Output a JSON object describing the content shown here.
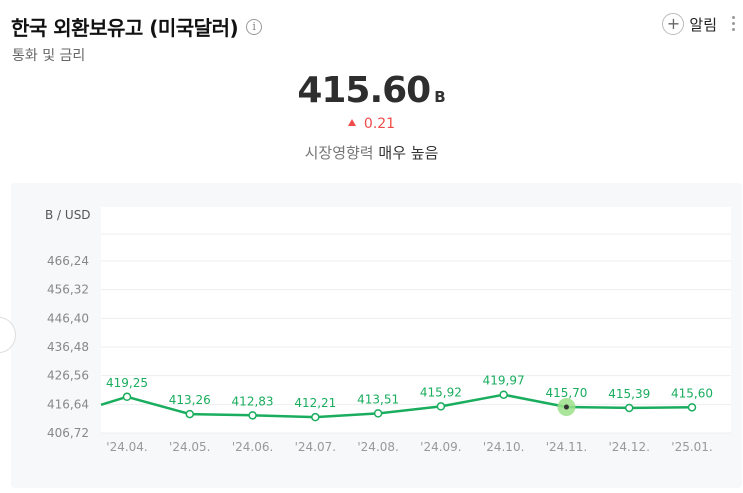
{
  "header": {
    "title": "한국 외환보유고 (미국달러)",
    "info_icon": "info-icon",
    "subtitle": "통화 및 금리",
    "alarm_label": "알림",
    "alarm_icon": "plus-icon",
    "more_icon": "more-vertical-icon"
  },
  "summary": {
    "value": "415.60",
    "unit": "B",
    "change": "0.21",
    "change_direction": "up",
    "impact_label": "시장영향력",
    "impact_value": "매우 높음"
  },
  "colors": {
    "line": "#1aad5e",
    "up": "#f04b4b",
    "highlight": "#9be08a"
  },
  "chart_data": {
    "type": "line",
    "ylabel": "B / USD",
    "y_ticks": [
      "466,24",
      "456,32",
      "446,40",
      "436,48",
      "426,56",
      "416,64",
      "406,72"
    ],
    "ylim": [
      406.72,
      466.24
    ],
    "categories": [
      "'24.04.",
      "'24.05.",
      "'24.06.",
      "'24.07.",
      "'24.08.",
      "'24.09.",
      "'24.10.",
      "'24.11.",
      "'24.12.",
      "'25.01."
    ],
    "values": [
      419.25,
      413.26,
      412.83,
      412.21,
      413.51,
      415.92,
      419.97,
      415.7,
      415.39,
      415.6
    ],
    "value_labels": [
      "419,25",
      "413,26",
      "412,83",
      "412,21",
      "413,51",
      "415,92",
      "419,97",
      "415,70",
      "415,39",
      "415,60"
    ],
    "highlighted_index": 7,
    "grid": true
  }
}
